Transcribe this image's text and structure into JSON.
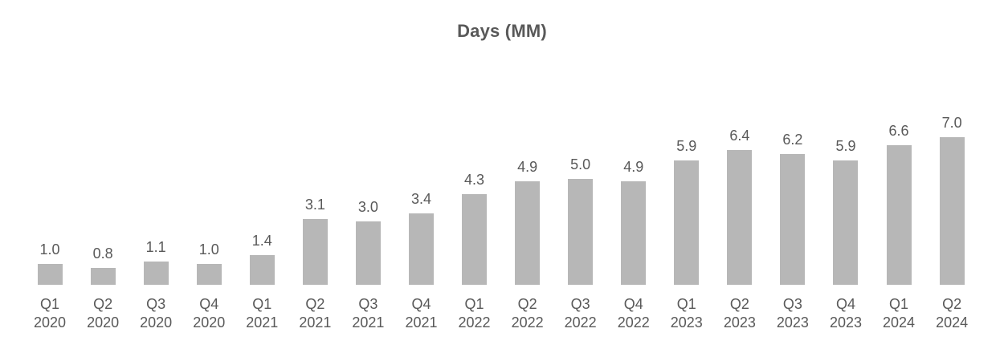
{
  "chart_data": {
    "type": "bar",
    "title": "Days (MM)",
    "xlabel": "",
    "ylabel": "",
    "categories": [
      "Q1 2020",
      "Q2 2020",
      "Q3 2020",
      "Q4 2020",
      "Q1 2021",
      "Q2 2021",
      "Q3 2021",
      "Q4 2021",
      "Q1 2022",
      "Q2 2022",
      "Q3 2022",
      "Q4 2022",
      "Q1 2023",
      "Q2 2023",
      "Q3 2023",
      "Q4 2023",
      "Q1 2024",
      "Q2 2024"
    ],
    "values": [
      1.0,
      0.8,
      1.1,
      1.0,
      1.4,
      3.1,
      3.0,
      3.4,
      4.3,
      4.9,
      5.0,
      4.9,
      5.9,
      6.4,
      6.2,
      5.9,
      6.6,
      7.0
    ],
    "value_label_decimals": 1,
    "ylim": [
      0,
      7.5
    ],
    "grid": false,
    "legend": "none",
    "axes_visible": false,
    "colors": {
      "bar": "#b7b7b7",
      "label_text": "#595959",
      "title_text": "#595959",
      "background": "#ffffff"
    }
  }
}
